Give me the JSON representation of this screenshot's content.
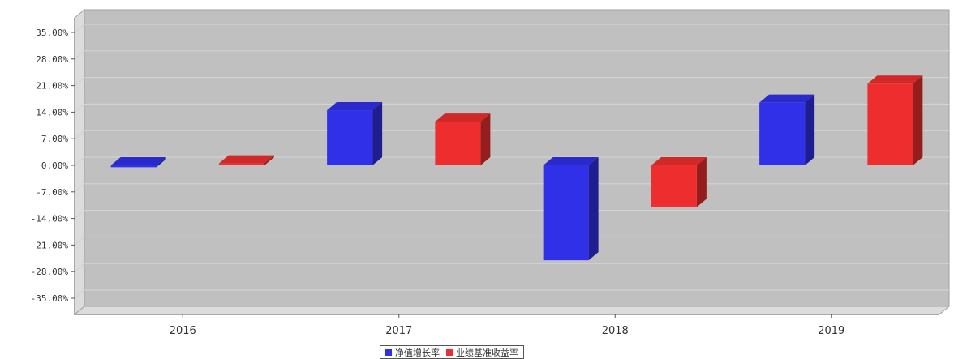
{
  "chart_data": {
    "type": "bar",
    "categories": [
      "2016",
      "2017",
      "2018",
      "2019"
    ],
    "series": [
      {
        "name": "净值增长率",
        "color": "#3030e8",
        "values": [
          -0.5,
          14.5,
          -25.0,
          16.5
        ]
      },
      {
        "name": "业绩基准收益率",
        "color": "#ee2e2e",
        "values": [
          0.5,
          11.5,
          -11.0,
          21.5
        ]
      }
    ],
    "ylim": [
      -35,
      35
    ],
    "y_ticks": [
      35,
      28,
      21,
      14,
      7,
      0,
      -7,
      -14,
      -21,
      -28,
      -35
    ],
    "y_tick_labels": [
      "35.00%",
      "28.00%",
      "21.00%",
      "14.00%",
      "7.00%",
      "0.00%",
      "-7.00%",
      "-14.00%",
      "-21.00%",
      "-28.00%",
      "-35.00%"
    ],
    "grid": true,
    "legend_position": "bottom-center",
    "style": "3d",
    "plot_background": "#c0c0c0"
  }
}
